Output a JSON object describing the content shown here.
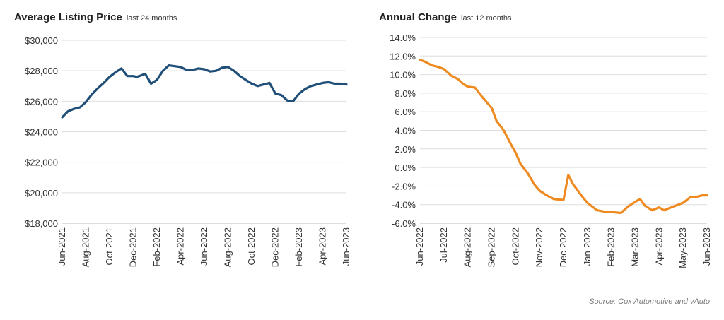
{
  "source": "Source: Cox Automotive and vAuto",
  "colors": {
    "left_line": "#1f4e79",
    "right_line": "#ee8a1f",
    "grid": "#dddddd"
  },
  "chart_data": [
    {
      "type": "line",
      "title": "Average Listing Price",
      "subtitle": "last 24 months",
      "ylim": [
        18000,
        30000
      ],
      "yticks": [
        18000,
        20000,
        22000,
        24000,
        26000,
        28000,
        30000
      ],
      "ytick_labels": [
        "$18,000",
        "$20,000",
        "$22,000",
        "$24,000",
        "$26,000",
        "$28,000",
        "$30,000"
      ],
      "xlim": [
        0,
        24
      ],
      "xticks": [
        0,
        2,
        4,
        6,
        8,
        10,
        12,
        14,
        16,
        18,
        20,
        22,
        24
      ],
      "xtick_labels": [
        "Jun-2021",
        "Aug-2021",
        "Oct-2021",
        "Dec-2021",
        "Feb-2022",
        "Apr-2022",
        "Jun-2022",
        "Aug-2022",
        "Oct-2022",
        "Dec-2022",
        "Feb-2023",
        "Apr-2023",
        "Jun-2023"
      ],
      "grid": true,
      "series": [
        {
          "x": [
            0,
            0.5,
            1,
            1.5,
            2,
            2.5,
            3,
            3.5,
            4,
            4.5,
            5,
            5.5,
            6,
            6.3,
            6.5,
            7,
            7.5,
            8,
            8.5,
            9,
            9.5,
            10,
            10.5,
            11,
            11.5,
            12,
            12.5,
            13,
            13.5,
            14,
            14.5,
            15,
            15.5,
            16,
            16.5,
            17,
            17.5,
            18,
            18.5,
            19,
            19.5,
            20,
            20.5,
            21,
            21.5,
            22,
            22.5,
            23,
            23.5,
            24
          ],
          "y": [
            24950,
            25350,
            25500,
            25600,
            25950,
            26450,
            26850,
            27200,
            27600,
            27900,
            28150,
            27650,
            27650,
            27600,
            27650,
            27800,
            27150,
            27400,
            28000,
            28350,
            28300,
            28250,
            28050,
            28050,
            28150,
            28100,
            27950,
            28000,
            28200,
            28250,
            28000,
            27650,
            27400,
            27150,
            27000,
            27100,
            27200,
            26500,
            26400,
            26050,
            26000,
            26500,
            26800,
            27000,
            27100,
            27200,
            27250,
            27150,
            27150,
            27100
          ]
        }
      ]
    },
    {
      "type": "line",
      "title": "Annual Change",
      "subtitle": "last 12 months",
      "ylim": [
        -6,
        14
      ],
      "yticks": [
        -6,
        -4,
        -2,
        0,
        2,
        4,
        6,
        8,
        10,
        12,
        14
      ],
      "ytick_labels": [
        "-6.0%",
        "-4.0%",
        "-2.0%",
        "0.0%",
        "2.0%",
        "4.0%",
        "6.0%",
        "8.0%",
        "10.0%",
        "12.0%",
        "14.0%"
      ],
      "xlim": [
        0,
        12
      ],
      "xticks": [
        0,
        1,
        2,
        3,
        4,
        5,
        6,
        7,
        8,
        9,
        10,
        11,
        12
      ],
      "xtick_labels": [
        "Jun-2022",
        "Jul-2022",
        "Aug-2022",
        "Sep-2022",
        "Oct-2022",
        "Nov-2022",
        "Dec-2022",
        "Jan-2023",
        "Feb-2023",
        "Mar-2023",
        "Apr-2023",
        "May-2023",
        "Jun-2023"
      ],
      "grid": true,
      "series": [
        {
          "x": [
            0,
            0.2,
            0.5,
            0.8,
            1,
            1.3,
            1.6,
            1.8,
            2,
            2.3,
            2.6,
            2.8,
            3,
            3.2,
            3.5,
            3.8,
            4,
            4.2,
            4.5,
            4.8,
            5,
            5.3,
            5.6,
            6,
            6.2,
            6.4,
            6.6,
            6.8,
            7,
            7.4,
            7.8,
            8,
            8.4,
            8.7,
            9,
            9.2,
            9.4,
            9.7,
            10,
            10.2,
            10.5,
            10.8,
            11,
            11.3,
            11.5,
            11.8,
            12
          ],
          "y": [
            11.6,
            11.4,
            11.0,
            10.8,
            10.6,
            9.9,
            9.5,
            9.0,
            8.7,
            8.6,
            7.6,
            7.0,
            6.4,
            5.0,
            4.0,
            2.5,
            1.6,
            0.4,
            -0.6,
            -1.9,
            -2.5,
            -3.0,
            -3.4,
            -3.5,
            -0.8,
            -1.8,
            -2.5,
            -3.2,
            -3.8,
            -4.6,
            -4.8,
            -4.8,
            -4.9,
            -4.2,
            -3.7,
            -3.4,
            -4.1,
            -4.6,
            -4.3,
            -4.6,
            -4.3,
            -4.0,
            -3.8,
            -3.2,
            -3.2,
            -3.0,
            -3.0
          ]
        }
      ]
    }
  ]
}
